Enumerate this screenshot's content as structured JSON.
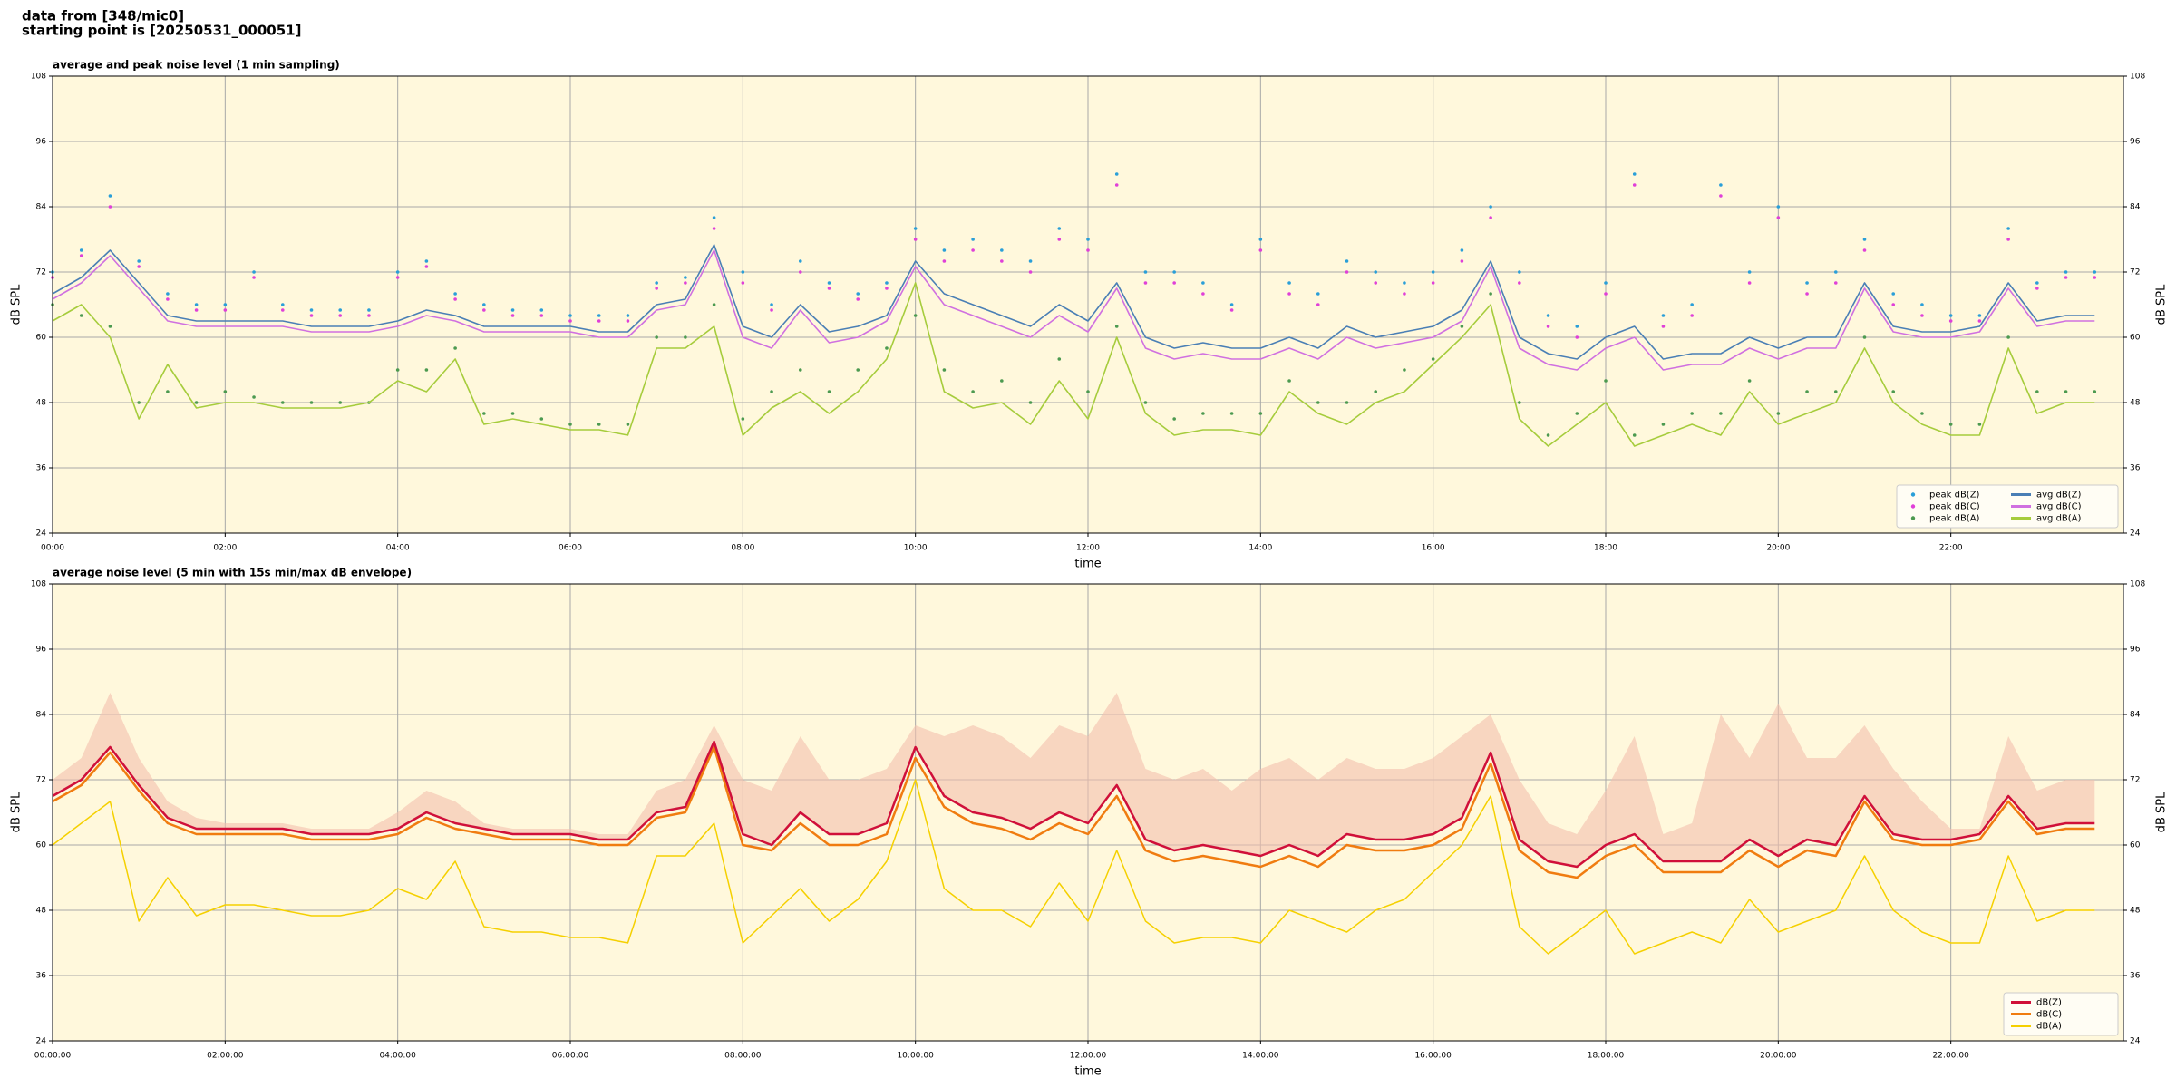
{
  "header": {
    "line1": "data from [348/mic0]",
    "line2": "starting point is [20250531_000051]"
  },
  "chart_data": [
    {
      "type": "line",
      "title": "average and peak noise level (1 min sampling)",
      "xlabel": "time",
      "ylabel": "dB SPL",
      "y2label": "dB SPL",
      "background": "#fff8dc",
      "grid": true,
      "legend": "lower right",
      "legend_columns": 2,
      "xlim": [
        0,
        1440
      ],
      "ylim": [
        24,
        108
      ],
      "y2lim": [
        24,
        108
      ],
      "xticks": [
        {
          "value": 0,
          "label": "00:00"
        },
        {
          "value": 120,
          "label": "02:00"
        },
        {
          "value": 240,
          "label": "04:00"
        },
        {
          "value": 360,
          "label": "06:00"
        },
        {
          "value": 480,
          "label": "08:00"
        },
        {
          "value": 600,
          "label": "10:00"
        },
        {
          "value": 720,
          "label": "12:00"
        },
        {
          "value": 840,
          "label": "14:00"
        },
        {
          "value": 960,
          "label": "16:00"
        },
        {
          "value": 1080,
          "label": "18:00"
        },
        {
          "value": 1200,
          "label": "20:00"
        },
        {
          "value": 1320,
          "label": "22:00"
        }
      ],
      "yticks": [
        24,
        36,
        48,
        60,
        72,
        84,
        96,
        108
      ],
      "y2ticks": [
        24,
        36,
        48,
        60,
        72,
        84,
        96,
        108
      ],
      "x": [
        0,
        20,
        40,
        60,
        80,
        100,
        120,
        140,
        160,
        180,
        200,
        220,
        240,
        260,
        280,
        300,
        320,
        340,
        360,
        380,
        400,
        420,
        440,
        460,
        480,
        500,
        520,
        540,
        560,
        580,
        600,
        620,
        640,
        660,
        680,
        700,
        720,
        740,
        760,
        780,
        800,
        820,
        840,
        860,
        880,
        900,
        920,
        940,
        960,
        980,
        1000,
        1020,
        1040,
        1060,
        1080,
        1100,
        1120,
        1140,
        1160,
        1180,
        1200,
        1220,
        1240,
        1260,
        1280,
        1300,
        1320,
        1340,
        1360,
        1380,
        1400,
        1420
      ],
      "series": [
        {
          "name": "peak dB(Z)",
          "type": "scatter",
          "color": "#2a9fd8",
          "values": [
            72,
            76,
            86,
            74,
            68,
            66,
            66,
            72,
            66,
            65,
            65,
            65,
            72,
            74,
            68,
            66,
            65,
            65,
            64,
            64,
            64,
            70,
            71,
            82,
            72,
            66,
            74,
            70,
            68,
            70,
            80,
            76,
            78,
            76,
            74,
            80,
            78,
            90,
            72,
            72,
            70,
            66,
            78,
            70,
            68,
            74,
            72,
            70,
            72,
            76,
            84,
            72,
            64,
            62,
            70,
            90,
            64,
            66,
            88,
            72,
            84,
            70,
            72,
            78,
            68,
            66,
            64,
            64,
            80,
            70,
            72,
            72
          ]
        },
        {
          "name": "peak dB(C)",
          "type": "scatter",
          "color": "#e040d8",
          "values": [
            71,
            75,
            84,
            73,
            67,
            65,
            65,
            71,
            65,
            64,
            64,
            64,
            71,
            73,
            67,
            65,
            64,
            64,
            63,
            63,
            63,
            69,
            70,
            80,
            70,
            65,
            72,
            69,
            67,
            69,
            78,
            74,
            76,
            74,
            72,
            78,
            76,
            88,
            70,
            70,
            68,
            65,
            76,
            68,
            66,
            72,
            70,
            68,
            70,
            74,
            82,
            70,
            62,
            60,
            68,
            88,
            62,
            64,
            86,
            70,
            82,
            68,
            70,
            76,
            66,
            64,
            63,
            63,
            78,
            69,
            71,
            71
          ]
        },
        {
          "name": "peak dB(A)",
          "type": "scatter",
          "color": "#4c9a50",
          "values": [
            66,
            64,
            62,
            48,
            50,
            48,
            50,
            49,
            48,
            48,
            48,
            48,
            54,
            54,
            58,
            46,
            46,
            45,
            44,
            44,
            44,
            60,
            60,
            66,
            45,
            50,
            54,
            50,
            54,
            58,
            64,
            54,
            50,
            52,
            48,
            56,
            50,
            62,
            48,
            45,
            46,
            46,
            46,
            52,
            48,
            48,
            50,
            54,
            56,
            62,
            68,
            48,
            42,
            46,
            52,
            42,
            44,
            46,
            46,
            52,
            46,
            50,
            50,
            60,
            50,
            46,
            44,
            44,
            60,
            50,
            50,
            50
          ]
        },
        {
          "name": "avg dB(Z)",
          "type": "line",
          "color": "#4a7fb5",
          "values": [
            68,
            71,
            76,
            70,
            64,
            63,
            63,
            63,
            63,
            62,
            62,
            62,
            63,
            65,
            64,
            62,
            62,
            62,
            62,
            61,
            61,
            66,
            67,
            77,
            62,
            60,
            66,
            61,
            62,
            64,
            74,
            68,
            66,
            64,
            62,
            66,
            63,
            70,
            60,
            58,
            59,
            58,
            58,
            60,
            58,
            62,
            60,
            61,
            62,
            65,
            74,
            60,
            57,
            56,
            60,
            62,
            56,
            57,
            57,
            60,
            58,
            60,
            60,
            70,
            62,
            61,
            61,
            62,
            70,
            63,
            64,
            64
          ]
        },
        {
          "name": "avg dB(C)",
          "type": "line",
          "color": "#d070e0",
          "values": [
            67,
            70,
            75,
            69,
            63,
            62,
            62,
            62,
            62,
            61,
            61,
            61,
            62,
            64,
            63,
            61,
            61,
            61,
            61,
            60,
            60,
            65,
            66,
            76,
            60,
            58,
            65,
            59,
            60,
            63,
            73,
            66,
            64,
            62,
            60,
            64,
            61,
            69,
            58,
            56,
            57,
            56,
            56,
            58,
            56,
            60,
            58,
            59,
            60,
            63,
            73,
            58,
            55,
            54,
            58,
            60,
            54,
            55,
            55,
            58,
            56,
            58,
            58,
            69,
            61,
            60,
            60,
            61,
            69,
            62,
            63,
            63
          ]
        },
        {
          "name": "avg dB(A)",
          "type": "line",
          "color": "#a6cc3c",
          "values": [
            63,
            66,
            60,
            45,
            55,
            47,
            48,
            48,
            47,
            47,
            47,
            48,
            52,
            50,
            56,
            44,
            45,
            44,
            43,
            43,
            42,
            58,
            58,
            62,
            42,
            47,
            50,
            46,
            50,
            56,
            70,
            50,
            47,
            48,
            44,
            52,
            45,
            60,
            46,
            42,
            43,
            43,
            42,
            50,
            46,
            44,
            48,
            50,
            55,
            60,
            66,
            45,
            40,
            44,
            48,
            40,
            42,
            44,
            42,
            50,
            44,
            46,
            48,
            58,
            48,
            44,
            42,
            42,
            58,
            46,
            48,
            48
          ]
        }
      ]
    },
    {
      "type": "line",
      "title": "average noise level (5 min with 15s min/max dB envelope)",
      "xlabel": "time",
      "ylabel": "dB SPL",
      "y2label": "dB SPL",
      "background": "#fff8dc",
      "grid": true,
      "legend": "lower right",
      "legend_columns": 1,
      "envelope_color": "#f4bfae",
      "xlim": [
        0,
        1440
      ],
      "ylim": [
        24,
        108
      ],
      "y2lim": [
        24,
        108
      ],
      "xticks": [
        {
          "value": 0,
          "label": "00:00:00"
        },
        {
          "value": 120,
          "label": "02:00:00"
        },
        {
          "value": 240,
          "label": "04:00:00"
        },
        {
          "value": 360,
          "label": "06:00:00"
        },
        {
          "value": 480,
          "label": "08:00:00"
        },
        {
          "value": 600,
          "label": "10:00:00"
        },
        {
          "value": 720,
          "label": "12:00:00"
        },
        {
          "value": 840,
          "label": "14:00:00"
        },
        {
          "value": 960,
          "label": "16:00:00"
        },
        {
          "value": 1080,
          "label": "18:00:00"
        },
        {
          "value": 1200,
          "label": "20:00:00"
        },
        {
          "value": 1320,
          "label": "22:00:00"
        }
      ],
      "yticks": [
        24,
        36,
        48,
        60,
        72,
        84,
        96,
        108
      ],
      "y2ticks": [
        24,
        36,
        48,
        60,
        72,
        84,
        96,
        108
      ],
      "x": [
        0,
        20,
        40,
        60,
        80,
        100,
        120,
        140,
        160,
        180,
        200,
        220,
        240,
        260,
        280,
        300,
        320,
        340,
        360,
        380,
        400,
        420,
        440,
        460,
        480,
        500,
        520,
        540,
        560,
        580,
        600,
        620,
        640,
        660,
        680,
        700,
        720,
        740,
        760,
        780,
        800,
        820,
        840,
        860,
        880,
        900,
        920,
        940,
        960,
        980,
        1000,
        1020,
        1040,
        1060,
        1080,
        1100,
        1120,
        1140,
        1160,
        1180,
        1200,
        1220,
        1240,
        1260,
        1280,
        1300,
        1320,
        1340,
        1360,
        1380,
        1400,
        1420
      ],
      "envelope_max": [
        72,
        76,
        88,
        76,
        68,
        65,
        64,
        64,
        64,
        63,
        63,
        63,
        66,
        70,
        68,
        64,
        63,
        63,
        63,
        62,
        62,
        70,
        72,
        82,
        72,
        70,
        80,
        72,
        72,
        74,
        82,
        80,
        82,
        80,
        76,
        82,
        80,
        88,
        74,
        72,
        74,
        70,
        74,
        76,
        72,
        76,
        74,
        74,
        76,
        80,
        84,
        72,
        64,
        62,
        70,
        80,
        62,
        64,
        84,
        76,
        86,
        76,
        76,
        82,
        74,
        68,
        63,
        63,
        80,
        70,
        72,
        72
      ],
      "series": [
        {
          "name": "dB(Z)",
          "type": "line",
          "color": "#d0103a",
          "width": 2.5,
          "values": [
            69,
            72,
            78,
            71,
            65,
            63,
            63,
            63,
            63,
            62,
            62,
            62,
            63,
            66,
            64,
            63,
            62,
            62,
            62,
            61,
            61,
            66,
            67,
            79,
            62,
            60,
            66,
            62,
            62,
            64,
            78,
            69,
            66,
            65,
            63,
            66,
            64,
            71,
            61,
            59,
            60,
            59,
            58,
            60,
            58,
            62,
            61,
            61,
            62,
            65,
            77,
            61,
            57,
            56,
            60,
            62,
            57,
            57,
            57,
            61,
            58,
            61,
            60,
            69,
            62,
            61,
            61,
            62,
            69,
            63,
            64,
            64
          ]
        },
        {
          "name": "dB(C)",
          "type": "line",
          "color": "#f07c10",
          "width": 2.5,
          "values": [
            68,
            71,
            77,
            70,
            64,
            62,
            62,
            62,
            62,
            61,
            61,
            61,
            62,
            65,
            63,
            62,
            61,
            61,
            61,
            60,
            60,
            65,
            66,
            78,
            60,
            59,
            64,
            60,
            60,
            62,
            76,
            67,
            64,
            63,
            61,
            64,
            62,
            69,
            59,
            57,
            58,
            57,
            56,
            58,
            56,
            60,
            59,
            59,
            60,
            63,
            75,
            59,
            55,
            54,
            58,
            60,
            55,
            55,
            55,
            59,
            56,
            59,
            58,
            68,
            61,
            60,
            60,
            61,
            68,
            62,
            63,
            63
          ]
        },
        {
          "name": "dB(A)",
          "type": "line",
          "color": "#f5d000",
          "width": 1.5,
          "values": [
            60,
            64,
            68,
            46,
            54,
            47,
            49,
            49,
            48,
            47,
            47,
            48,
            52,
            50,
            57,
            45,
            44,
            44,
            43,
            43,
            42,
            58,
            58,
            64,
            42,
            47,
            52,
            46,
            50,
            57,
            72,
            52,
            48,
            48,
            45,
            53,
            46,
            59,
            46,
            42,
            43,
            43,
            42,
            48,
            46,
            44,
            48,
            50,
            55,
            60,
            69,
            45,
            40,
            44,
            48,
            40,
            42,
            44,
            42,
            50,
            44,
            46,
            48,
            58,
            48,
            44,
            42,
            42,
            58,
            46,
            48,
            48
          ]
        }
      ]
    }
  ]
}
